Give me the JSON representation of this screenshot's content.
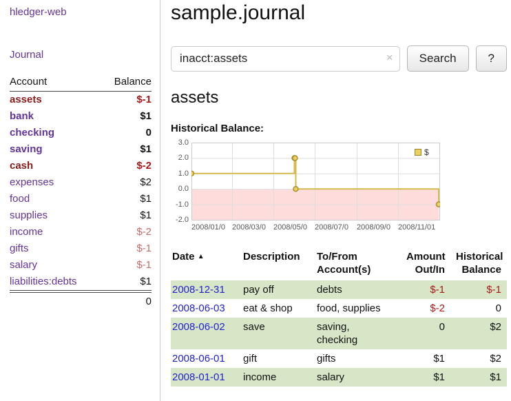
{
  "colors": {
    "accent_purple": "#663399",
    "negative_red": "#a81818",
    "negative_light_red": "#c46a6a",
    "maroon_account": "#8b1a1a",
    "date_link_blue": "#2222cc",
    "row_shade_green": "#d6e6c6"
  },
  "sidebar": {
    "app_title": "hledger-web",
    "journal_label": "Journal",
    "headers": {
      "account": "Account",
      "balance": "Balance"
    },
    "accounts": [
      {
        "name": "assets",
        "balance": "$-1",
        "depth": 0,
        "bold": true,
        "name_negative": true,
        "bal_class": "neg"
      },
      {
        "name": "bank",
        "balance": "$1",
        "depth": 1,
        "bold": true,
        "name_negative": false,
        "bal_class": ""
      },
      {
        "name": "checking",
        "balance": "0",
        "depth": 2,
        "bold": true,
        "name_negative": false,
        "bal_class": ""
      },
      {
        "name": "saving",
        "balance": "$1",
        "depth": 2,
        "bold": true,
        "name_negative": false,
        "bal_class": ""
      },
      {
        "name": "cash",
        "balance": "$-2",
        "depth": 1,
        "bold": true,
        "name_negative": true,
        "bal_class": "neg"
      },
      {
        "name": "expenses",
        "balance": "$2",
        "depth": 0,
        "bold": false,
        "name_negative": false,
        "bal_class": ""
      },
      {
        "name": "food",
        "balance": "$1",
        "depth": 1,
        "bold": false,
        "name_negative": false,
        "bal_class": ""
      },
      {
        "name": "supplies",
        "balance": "$1",
        "depth": 1,
        "bold": false,
        "name_negative": false,
        "bal_class": ""
      },
      {
        "name": "income",
        "balance": "$-2",
        "depth": 0,
        "bold": false,
        "name_negative": false,
        "bal_class": "negl"
      },
      {
        "name": "gifts",
        "balance": "$-1",
        "depth": 1,
        "bold": false,
        "name_negative": false,
        "bal_class": "negl"
      },
      {
        "name": "salary",
        "balance": "$-1",
        "depth": 1,
        "bold": false,
        "name_negative": false,
        "bal_class": "negl"
      },
      {
        "name": "liabilities:debts",
        "balance": "$1",
        "depth": 0,
        "bold": false,
        "name_negative": false,
        "bal_class": ""
      }
    ],
    "total": "0"
  },
  "main": {
    "title": "sample.journal",
    "search": {
      "value": "inacct:assets",
      "clear_icon": "×",
      "button_label": "Search",
      "help_label": "?"
    },
    "account_heading": "assets",
    "chart_label": "Historical Balance:"
  },
  "chart_data": {
    "type": "line",
    "step": true,
    "title": "Historical Balance",
    "legend": "$",
    "legend_position": "top-right",
    "ylim": [
      -2,
      3
    ],
    "yticks": [
      "3.0",
      "2.0",
      "1.0",
      "0.0",
      "-1.0",
      "-2.0"
    ],
    "xticks": [
      "2008/01/0",
      "2008/03/0",
      "2008/05/0",
      "2008/07/0",
      "2008/09/0",
      "2008/11/01"
    ],
    "xtick_days": [
      0,
      60,
      121,
      182,
      244,
      305
    ],
    "x_domain_days": 366,
    "series": [
      {
        "name": "$",
        "points": [
          [
            "2008-01-01",
            1
          ],
          [
            "2008-06-01",
            2
          ],
          [
            "2008-06-02",
            2
          ],
          [
            "2008-06-03",
            0
          ],
          [
            "2008-12-31",
            -1
          ]
        ]
      }
    ],
    "line_color": "#d6ba4e",
    "marker_fill": "#eecf5e",
    "marker_stroke": "#a98f2f",
    "negative_region_color": "#ffdcdc",
    "grid_color": "#dddddd",
    "border_color": "#cccccc"
  },
  "register": {
    "headers": {
      "date": "Date",
      "sort_icon": "▲",
      "description": "Description",
      "accounts": "To/From\nAccount(s)",
      "amount": "Amount\nOut/In",
      "balance": "Historical\nBalance"
    },
    "rows": [
      {
        "date": "2008-12-31",
        "description": "pay off",
        "accounts": "debts",
        "amount": "$-1",
        "balance": "$-1",
        "amount_negative": true,
        "balance_negative": true,
        "shaded": true
      },
      {
        "date": "2008-06-03",
        "description": "eat & shop",
        "accounts": "food, supplies",
        "amount": "$-2",
        "balance": "0",
        "amount_negative": true,
        "balance_negative": false,
        "shaded": false
      },
      {
        "date": "2008-06-02",
        "description": "save",
        "accounts": "saving,\nchecking",
        "amount": "0",
        "balance": "$2",
        "amount_negative": false,
        "balance_negative": false,
        "shaded": true
      },
      {
        "date": "2008-06-01",
        "description": "gift",
        "accounts": "gifts",
        "amount": "$1",
        "balance": "$2",
        "amount_negative": false,
        "balance_negative": false,
        "shaded": false
      },
      {
        "date": "2008-01-01",
        "description": "income",
        "accounts": "salary",
        "amount": "$1",
        "balance": "$1",
        "amount_negative": false,
        "balance_negative": false,
        "shaded": true
      }
    ]
  }
}
